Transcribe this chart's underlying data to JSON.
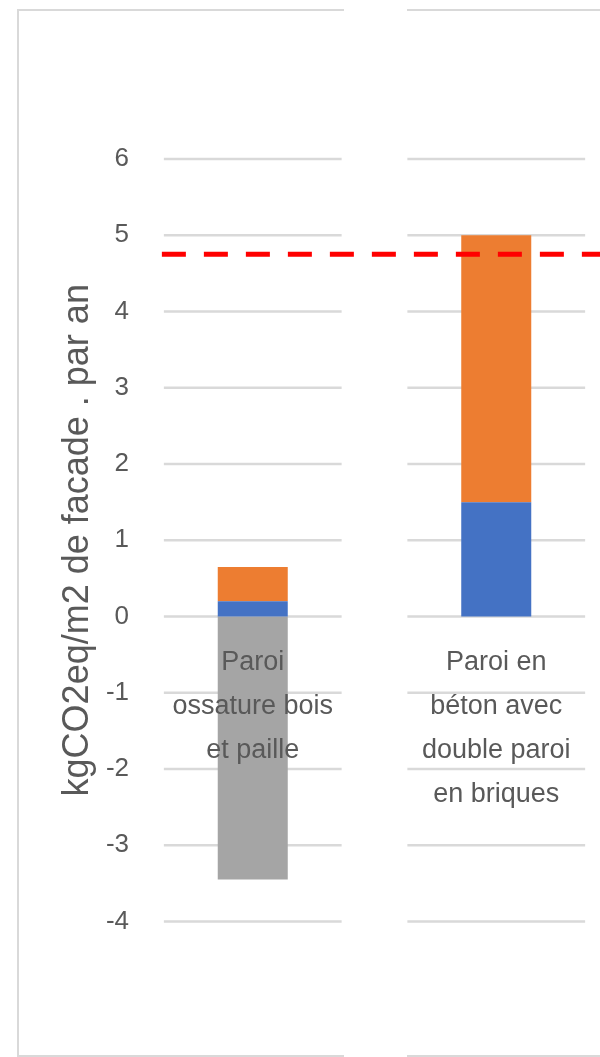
{
  "chart_data": {
    "type": "bar",
    "ylabel": "kgCO2eq/m2 de facade . par an",
    "categories": [
      "Paroi ossature bois et paille",
      "Paroi en béton avec double paroi en briques"
    ],
    "stacked": true,
    "series": [
      {
        "color": "#4472c4",
        "values": [
          0.2,
          1.5
        ]
      },
      {
        "color": "#ed7d31",
        "values": [
          0.45,
          3.5
        ]
      },
      {
        "color": "#a5a5a5",
        "values": [
          -3.45,
          null
        ]
      }
    ],
    "ylim": [
      -4,
      6
    ],
    "yticks": [
      -4,
      -3,
      -2,
      -1,
      0,
      1,
      2,
      3,
      4,
      5,
      6
    ],
    "grid": "y",
    "ref_lines": [
      {
        "axis": "y",
        "value": 4.75,
        "color": "#ff0000",
        "line_style": "dashed"
      }
    ]
  }
}
